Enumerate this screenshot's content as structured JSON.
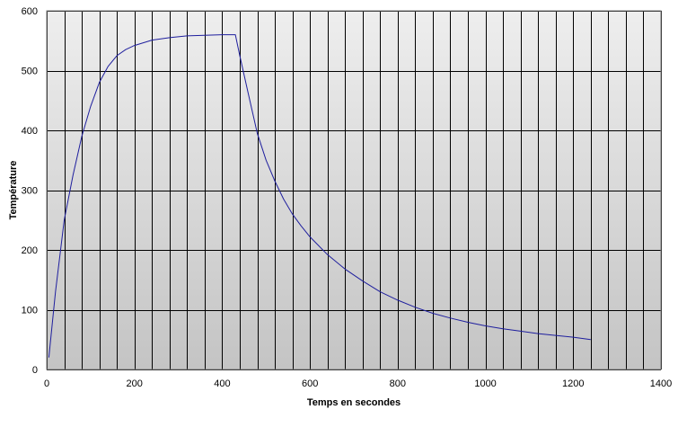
{
  "chart_data": {
    "type": "line",
    "title": "",
    "xlabel": "Temps en secondes",
    "ylabel": "Température",
    "xlim": [
      0,
      1400
    ],
    "ylim": [
      0,
      600
    ],
    "x_ticks": [
      0,
      200,
      400,
      600,
      800,
      1000,
      1200,
      1400
    ],
    "y_ticks": [
      0,
      100,
      200,
      300,
      400,
      500,
      600
    ],
    "x_gridlines": [
      0,
      40,
      80,
      120,
      160,
      200,
      240,
      280,
      320,
      360,
      400,
      440,
      480,
      520,
      560,
      600,
      640,
      680,
      720,
      760,
      800,
      840,
      880,
      920,
      960,
      1000,
      1040,
      1080,
      1120,
      1160,
      1200,
      1240,
      1280,
      1320,
      1360,
      1400
    ],
    "grid": true,
    "legend": "none",
    "colors": {
      "line": "#1f1f9e",
      "plot_bg_top": "#eeeeee",
      "plot_bg_bottom": "#c4c4c4",
      "grid": "#000000"
    },
    "series": [
      {
        "values": [
          [
            5,
            20
          ],
          [
            20,
            130
          ],
          [
            40,
            250
          ],
          [
            60,
            325
          ],
          [
            80,
            390
          ],
          [
            100,
            440
          ],
          [
            120,
            480
          ],
          [
            140,
            507
          ],
          [
            160,
            525
          ],
          [
            180,
            535
          ],
          [
            200,
            542
          ],
          [
            240,
            551
          ],
          [
            280,
            555
          ],
          [
            320,
            558
          ],
          [
            360,
            559
          ],
          [
            400,
            560
          ],
          [
            430,
            560
          ],
          [
            440,
            525
          ],
          [
            460,
            460
          ],
          [
            480,
            395
          ],
          [
            500,
            350
          ],
          [
            520,
            315
          ],
          [
            540,
            285
          ],
          [
            560,
            260
          ],
          [
            580,
            240
          ],
          [
            600,
            222
          ],
          [
            640,
            192
          ],
          [
            680,
            168
          ],
          [
            720,
            148
          ],
          [
            760,
            130
          ],
          [
            800,
            116
          ],
          [
            840,
            104
          ],
          [
            880,
            94
          ],
          [
            920,
            86
          ],
          [
            960,
            79
          ],
          [
            1000,
            73
          ],
          [
            1040,
            68
          ],
          [
            1080,
            64
          ],
          [
            1120,
            60
          ],
          [
            1160,
            57
          ],
          [
            1200,
            54
          ],
          [
            1240,
            50
          ]
        ]
      }
    ]
  }
}
